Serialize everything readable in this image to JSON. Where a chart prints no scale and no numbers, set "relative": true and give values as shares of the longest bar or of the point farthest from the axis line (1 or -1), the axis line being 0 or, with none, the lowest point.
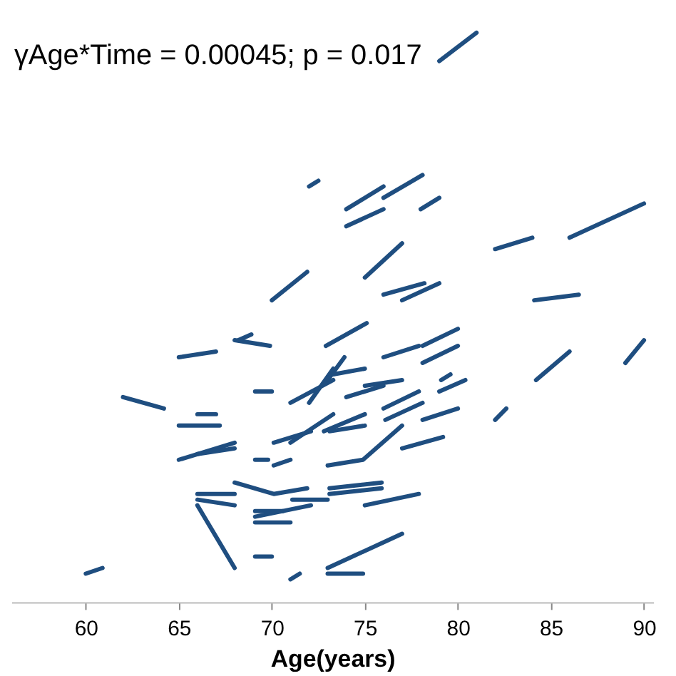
{
  "chart_data": {
    "type": "line",
    "relative": true,
    "xlabel": "Age(years)",
    "annotations": [
      "γAge*Time = 0.00045; p = 0.017"
    ],
    "xlim": [
      56,
      90.5
    ],
    "xticks": [
      60,
      65,
      70,
      75,
      80,
      85,
      90
    ],
    "tick_labels": "x",
    "grid": false,
    "series": [
      {
        "color": "#1f4e80",
        "x": [
          79.0,
          81.0
        ],
        "values": [
          0.95,
          1.0
        ]
      },
      {
        "color": "#1f4e80",
        "x": [
          74.0,
          76.0
        ],
        "values": [
          0.69,
          0.73
        ]
      },
      {
        "color": "#1f4e80",
        "x": [
          76.0,
          78.1
        ],
        "values": [
          0.71,
          0.75
        ]
      },
      {
        "color": "#1f4e80",
        "x": [
          74.0,
          76.0
        ],
        "values": [
          0.66,
          0.69
        ]
      },
      {
        "color": "#1f4e80",
        "x": [
          78.0,
          79.0
        ],
        "values": [
          0.69,
          0.71
        ]
      },
      {
        "color": "#1f4e80",
        "x": [
          75.0,
          77.0
        ],
        "values": [
          0.57,
          0.63
        ]
      },
      {
        "color": "#1f4e80",
        "x": [
          82.0,
          84.0
        ],
        "values": [
          0.62,
          0.64
        ]
      },
      {
        "color": "#1f4e80",
        "x": [
          86.0,
          90.0
        ],
        "values": [
          0.64,
          0.7
        ]
      },
      {
        "color": "#1f4e80",
        "x": [
          76.0,
          78.2
        ],
        "values": [
          0.54,
          0.56
        ]
      },
      {
        "color": "#1f4e80",
        "x": [
          77.0,
          79.0
        ],
        "values": [
          0.53,
          0.56
        ]
      },
      {
        "color": "#1f4e80",
        "x": [
          84.1,
          86.5
        ],
        "values": [
          0.53,
          0.54
        ]
      },
      {
        "color": "#1f4e80",
        "x": [
          72.0,
          72.5
        ],
        "values": [
          0.73,
          0.74
        ]
      },
      {
        "color": "#1f4e80",
        "x": [
          70.0,
          71.9
        ],
        "values": [
          0.53,
          0.58
        ]
      },
      {
        "color": "#1f4e80",
        "x": [
          65.0,
          67.0
        ],
        "values": [
          0.43,
          0.44
        ]
      },
      {
        "color": "#1f4e80",
        "x": [
          68.0,
          69.9
        ],
        "values": [
          0.46,
          0.45
        ]
      },
      {
        "color": "#1f4e80",
        "x": [
          68.2,
          68.9
        ],
        "values": [
          0.46,
          0.47
        ]
      },
      {
        "color": "#1f4e80",
        "x": [
          62.0,
          64.2
        ],
        "values": [
          0.36,
          0.34
        ]
      },
      {
        "color": "#1f4e80",
        "x": [
          69.1,
          70.0
        ],
        "values": [
          0.37,
          0.37
        ]
      },
      {
        "color": "#1f4e80",
        "x": [
          65.0,
          67.2
        ],
        "values": [
          0.31,
          0.31
        ]
      },
      {
        "color": "#1f4e80",
        "x": [
          66.0,
          67.0
        ],
        "values": [
          0.33,
          0.33
        ]
      },
      {
        "color": "#1f4e80",
        "x": [
          65.0,
          68.0
        ],
        "values": [
          0.25,
          0.28
        ]
      },
      {
        "color": "#1f4e80",
        "x": [
          66.0,
          68.0
        ],
        "values": [
          0.26,
          0.27
        ]
      },
      {
        "color": "#1f4e80",
        "x": [
          69.1,
          69.8
        ],
        "values": [
          0.25,
          0.25
        ]
      },
      {
        "color": "#1f4e80",
        "x": [
          70.1,
          71.0
        ],
        "values": [
          0.24,
          0.25
        ]
      },
      {
        "color": "#1f4e80",
        "x": [
          68.0,
          70.1,
          71.9
        ],
        "values": [
          0.21,
          0.19,
          0.2
        ]
      },
      {
        "color": "#1f4e80",
        "x": [
          66.0,
          68.0
        ],
        "values": [
          0.19,
          0.19
        ]
      },
      {
        "color": "#1f4e80",
        "x": [
          66.0,
          68.0
        ],
        "values": [
          0.18,
          0.17
        ]
      },
      {
        "color": "#1f4e80",
        "x": [
          66.0,
          68.0
        ],
        "values": [
          0.17,
          0.06
        ]
      },
      {
        "color": "#1f4e80",
        "x": [
          69.1,
          72.1
        ],
        "values": [
          0.15,
          0.17
        ]
      },
      {
        "color": "#1f4e80",
        "x": [
          69.1,
          71.0
        ],
        "values": [
          0.14,
          0.14
        ]
      },
      {
        "color": "#1f4e80",
        "x": [
          69.1,
          70.6
        ],
        "values": [
          0.16,
          0.16
        ]
      },
      {
        "color": "#1f4e80",
        "x": [
          71.1,
          73.0
        ],
        "values": [
          0.18,
          0.18
        ]
      },
      {
        "color": "#1f4e80",
        "x": [
          69.1,
          70.0
        ],
        "values": [
          0.08,
          0.08
        ]
      },
      {
        "color": "#1f4e80",
        "x": [
          60.0,
          60.9
        ],
        "values": [
          0.05,
          0.06
        ]
      },
      {
        "color": "#1f4e80",
        "x": [
          71.0,
          71.5
        ],
        "values": [
          0.04,
          0.05
        ]
      },
      {
        "color": "#1f4e80",
        "x": [
          70.1,
          72.1
        ],
        "values": [
          0.28,
          0.3
        ]
      },
      {
        "color": "#1f4e80",
        "x": [
          71.0,
          73.3
        ],
        "values": [
          0.35,
          0.39
        ]
      },
      {
        "color": "#1f4e80",
        "x": [
          72.0,
          73.3
        ],
        "values": [
          0.35,
          0.41
        ]
      },
      {
        "color": "#1f4e80",
        "x": [
          71.0,
          73.3
        ],
        "values": [
          0.28,
          0.33
        ]
      },
      {
        "color": "#1f4e80",
        "x": [
          72.9,
          75.1
        ],
        "values": [
          0.45,
          0.49
        ]
      },
      {
        "color": "#1f4e80",
        "x": [
          78.1,
          80.0
        ],
        "values": [
          0.45,
          0.48
        ]
      },
      {
        "color": "#1f4e80",
        "x": [
          76.0,
          77.9
        ],
        "values": [
          0.43,
          0.45
        ]
      },
      {
        "color": "#1f4e80",
        "x": [
          78.1,
          80.0
        ],
        "values": [
          0.42,
          0.45
        ]
      },
      {
        "color": "#1f4e80",
        "x": [
          73.0,
          73.9
        ],
        "values": [
          0.39,
          0.43
        ]
      },
      {
        "color": "#1f4e80",
        "x": [
          73.3,
          75.0
        ],
        "values": [
          0.4,
          0.41
        ]
      },
      {
        "color": "#1f4e80",
        "x": [
          79.1,
          79.6
        ],
        "values": [
          0.39,
          0.4
        ]
      },
      {
        "color": "#1f4e80",
        "x": [
          79.0,
          80.4
        ],
        "values": [
          0.37,
          0.39
        ]
      },
      {
        "color": "#1f4e80",
        "x": [
          75.0,
          77.0
        ],
        "values": [
          0.38,
          0.39
        ]
      },
      {
        "color": "#1f4e80",
        "x": [
          84.2,
          86.0
        ],
        "values": [
          0.39,
          0.44
        ]
      },
      {
        "color": "#1f4e80",
        "x": [
          89.0,
          90.0
        ],
        "values": [
          0.42,
          0.46
        ]
      },
      {
        "color": "#1f4e80",
        "x": [
          74.0,
          76.0
        ],
        "values": [
          0.36,
          0.38
        ]
      },
      {
        "color": "#1f4e80",
        "x": [
          76.0,
          77.9
        ],
        "values": [
          0.34,
          0.37
        ]
      },
      {
        "color": "#1f4e80",
        "x": [
          76.1,
          78.1
        ],
        "values": [
          0.32,
          0.35
        ]
      },
      {
        "color": "#1f4e80",
        "x": [
          78.1,
          80.0
        ],
        "values": [
          0.32,
          0.34
        ]
      },
      {
        "color": "#1f4e80",
        "x": [
          82.0,
          82.6
        ],
        "values": [
          0.32,
          0.34
        ]
      },
      {
        "color": "#1f4e80",
        "x": [
          72.8,
          75.0
        ],
        "values": [
          0.3,
          0.33
        ]
      },
      {
        "color": "#1f4e80",
        "x": [
          73.1,
          75.0
        ],
        "values": [
          0.3,
          0.31
        ]
      },
      {
        "color": "#1f4e80",
        "x": [
          77.0,
          79.2
        ],
        "values": [
          0.27,
          0.29
        ]
      },
      {
        "color": "#1f4e80",
        "x": [
          73.0,
          74.9,
          77.0
        ],
        "values": [
          0.24,
          0.25,
          0.31
        ]
      },
      {
        "color": "#1f4e80",
        "x": [
          73.1,
          75.9
        ],
        "values": [
          0.2,
          0.21
        ]
      },
      {
        "color": "#1f4e80",
        "x": [
          73.1,
          75.9
        ],
        "values": [
          0.19,
          0.2
        ]
      },
      {
        "color": "#1f4e80",
        "x": [
          75.0,
          77.9
        ],
        "values": [
          0.17,
          0.19
        ]
      },
      {
        "color": "#1f4e80",
        "x": [
          73.0,
          77.0
        ],
        "values": [
          0.06,
          0.12
        ]
      },
      {
        "color": "#1f4e80",
        "x": [
          73.0,
          74.9
        ],
        "values": [
          0.05,
          0.05
        ]
      }
    ]
  }
}
